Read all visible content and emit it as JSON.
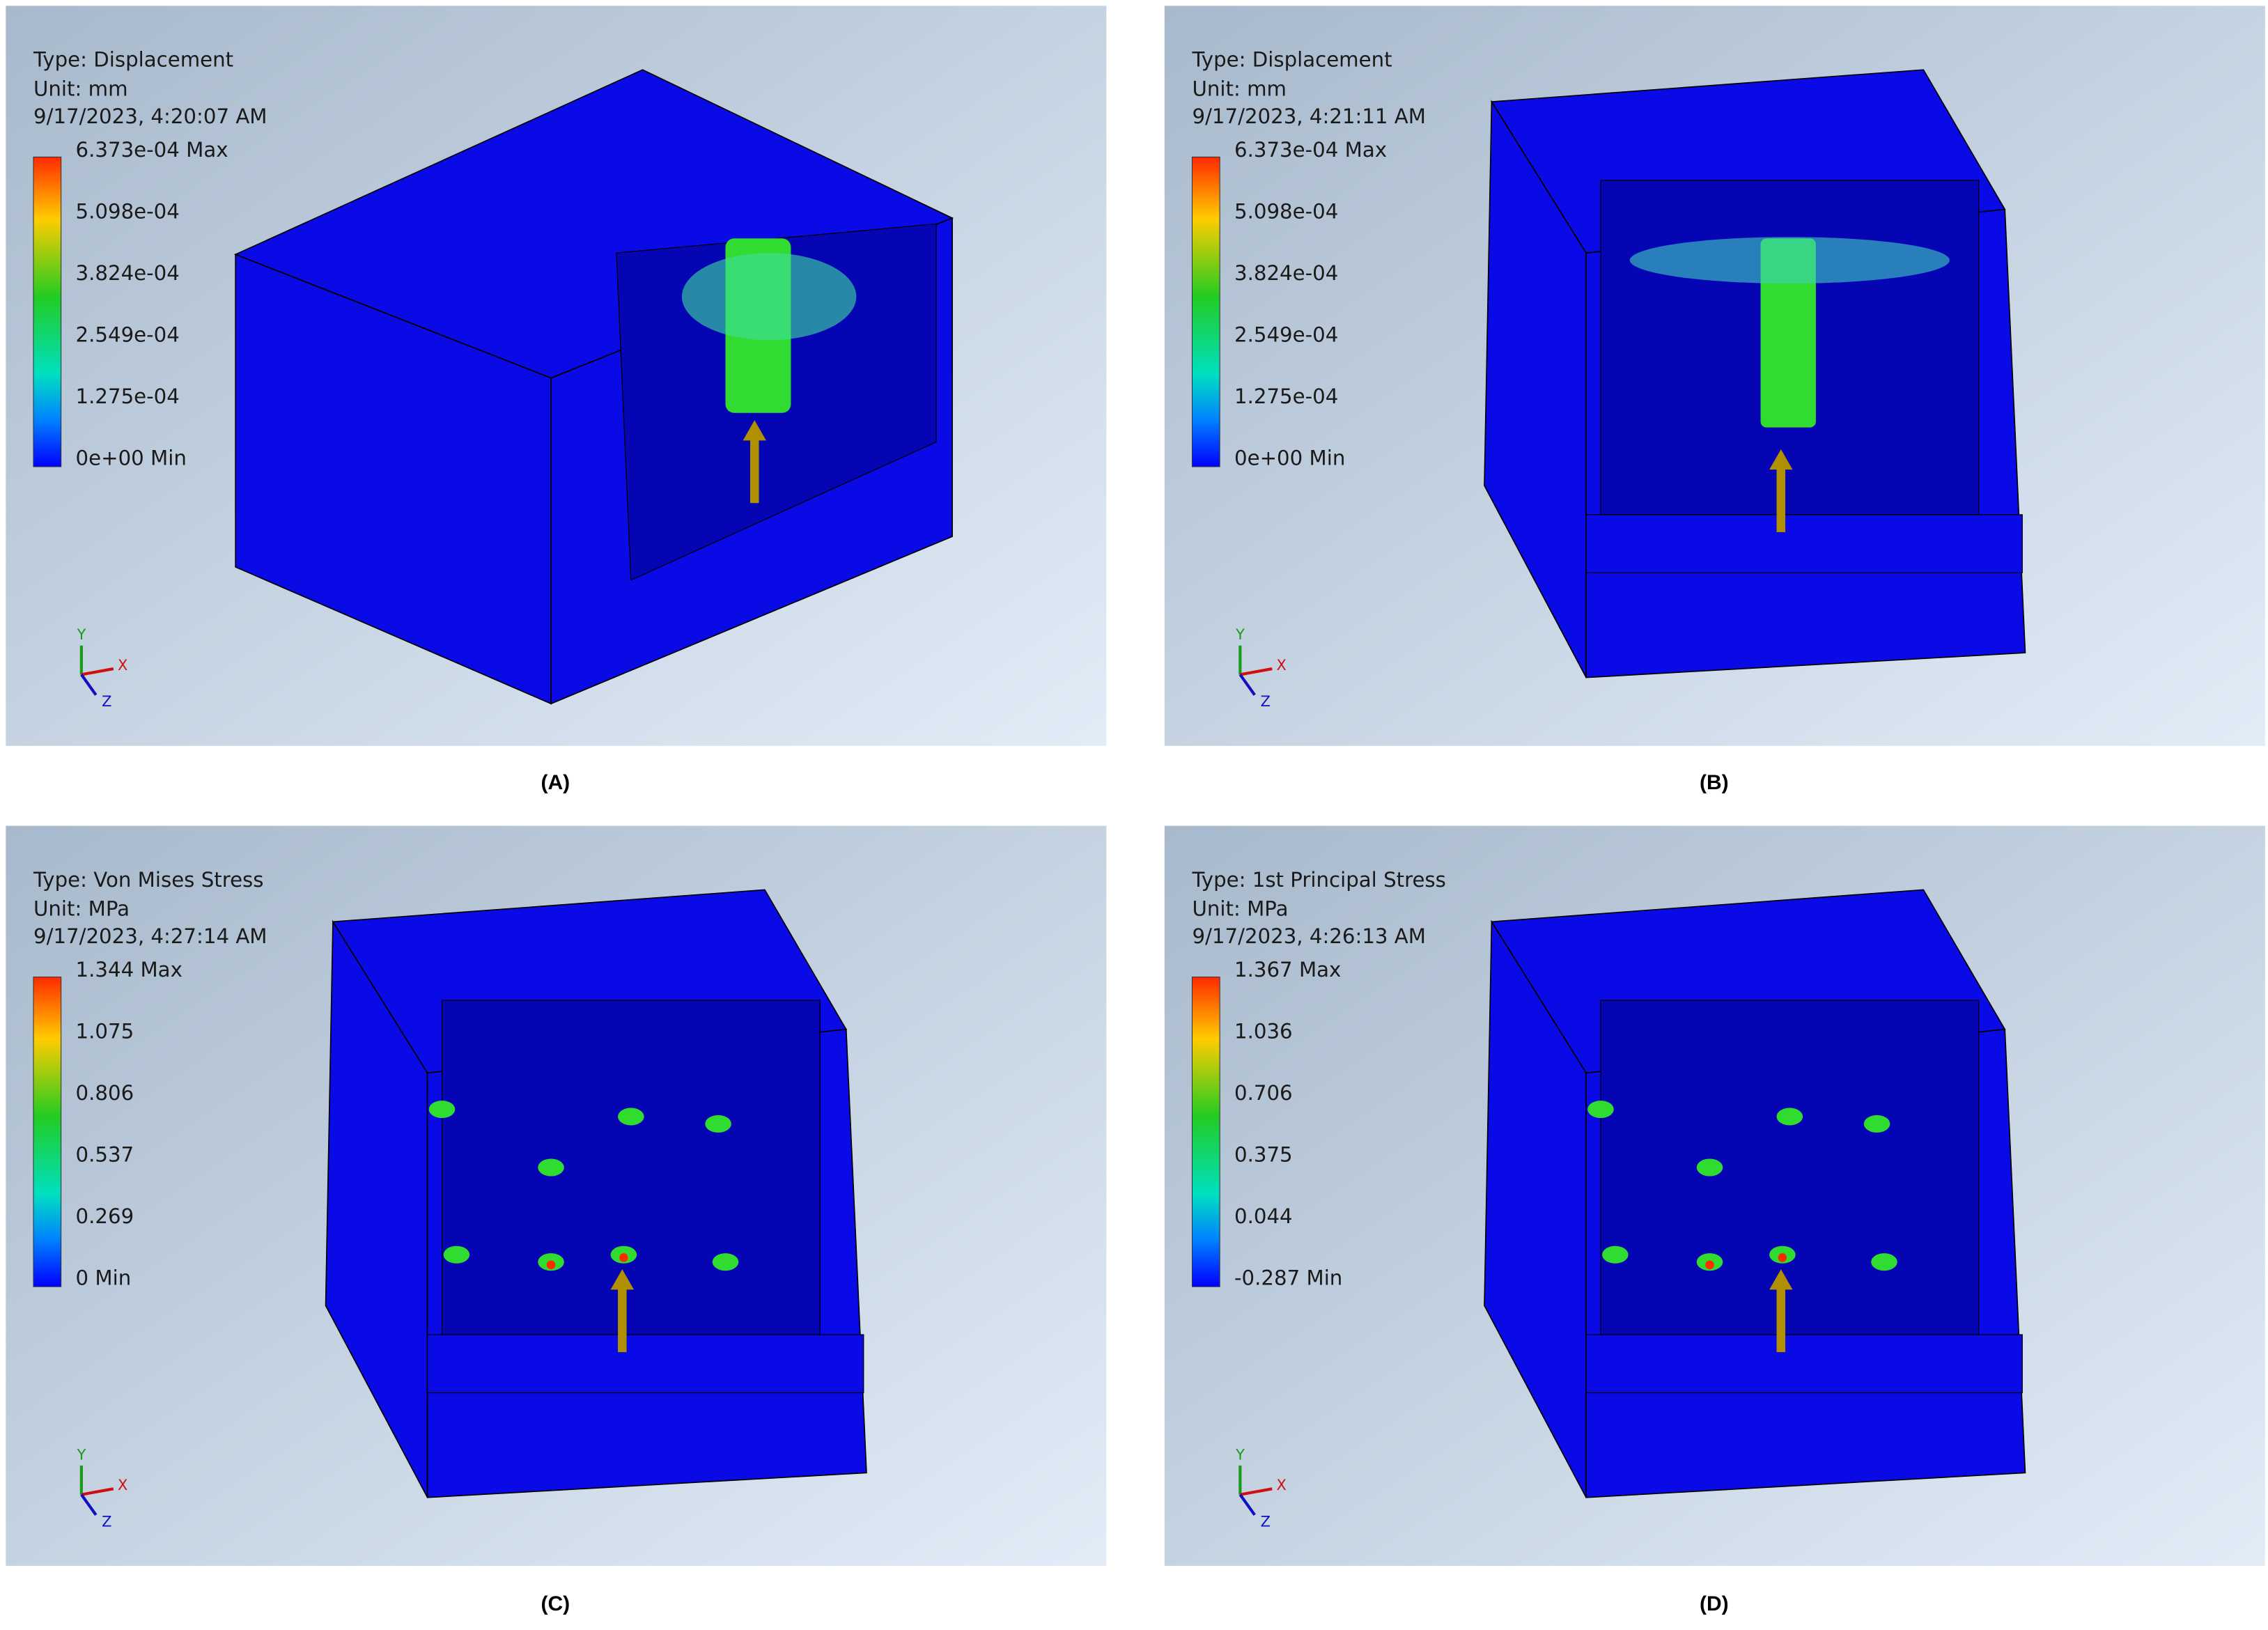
{
  "panels": [
    {
      "type_line": "Type: Displacement",
      "unit_line": "Unit: mm",
      "timestamp": "9/17/2023, 4:20:07 AM",
      "legend": [
        "6.373e-04 Max",
        "5.098e-04",
        "3.824e-04",
        "2.549e-04",
        "1.275e-04",
        "0e+00 Min"
      ],
      "axes": [
        "Y",
        "X",
        "Z"
      ],
      "caption": "(A)"
    },
    {
      "type_line": "Type: Displacement",
      "unit_line": "Unit: mm",
      "timestamp": "9/17/2023, 4:21:11 AM",
      "legend": [
        "6.373e-04 Max",
        "5.098e-04",
        "3.824e-04",
        "2.549e-04",
        "1.275e-04",
        "0e+00 Min"
      ],
      "axes": [
        "Y",
        "X",
        "Z"
      ],
      "caption": "(B)"
    },
    {
      "type_line": "Type: Von Mises Stress",
      "unit_line": "Unit: MPa",
      "timestamp": "9/17/2023, 4:27:14 AM",
      "legend": [
        "1.344 Max",
        "1.075",
        "0.806",
        "0.537",
        "0.269",
        "0 Min"
      ],
      "axes": [
        "Y",
        "X",
        "Z"
      ],
      "caption": "(C)"
    },
    {
      "type_line": "Type: 1st Principal Stress",
      "unit_line": "Unit: MPa",
      "timestamp": "9/17/2023, 4:26:13 AM",
      "legend": [
        "1.367 Max",
        "1.036",
        "0.706",
        "0.375",
        "0.044",
        "-0.287 Min"
      ],
      "axes": [
        "Y",
        "X",
        "Z"
      ],
      "caption": "(D)"
    }
  ]
}
